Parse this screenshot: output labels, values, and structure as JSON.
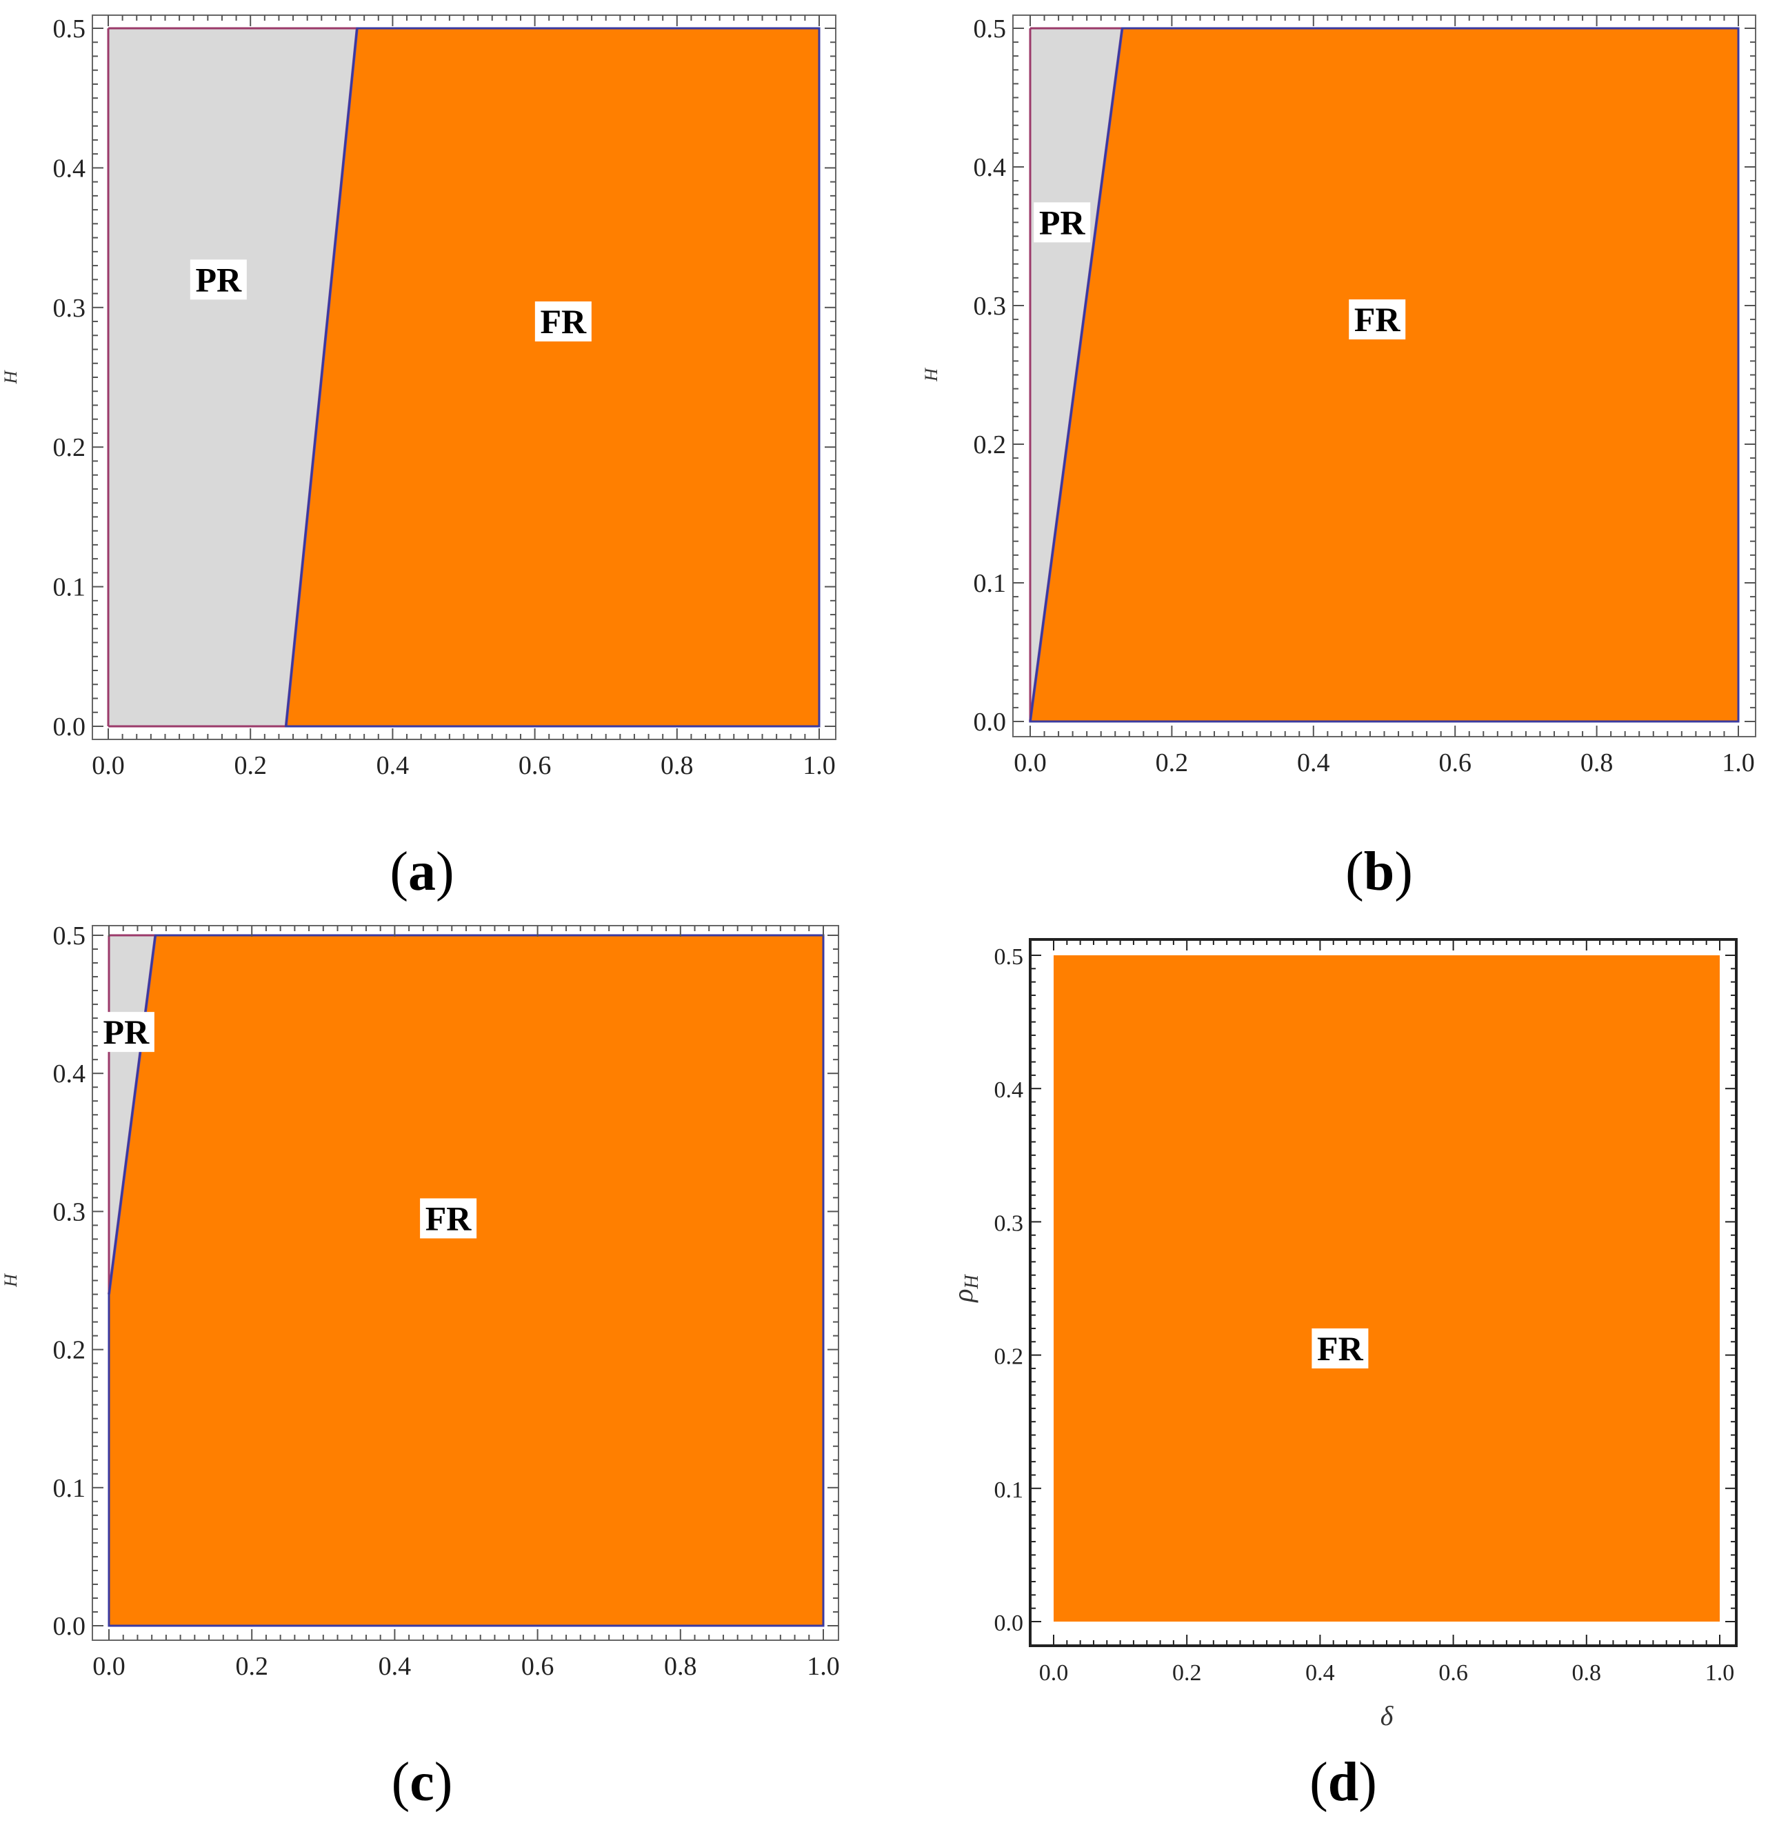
{
  "figure": {
    "colors": {
      "FR_fill": "#ff7f00",
      "PR_fill": "#d9d9d9",
      "boundary_line": "#7b4fa0",
      "outline_left": "#9b3a6a",
      "outline_right": "#3a3aa0"
    }
  },
  "chart_data": [
    {
      "panel": "a",
      "caption_letter": "a",
      "type": "area",
      "xlabel": "",
      "ylabel": "H",
      "xlim": [
        0.0,
        1.0
      ],
      "ylim": [
        0.0,
        0.5
      ],
      "xticks": [
        "0.0",
        "0.2",
        "0.4",
        "0.6",
        "0.8",
        "1.0"
      ],
      "yticks": [
        "0.0",
        "0.1",
        "0.2",
        "0.3",
        "0.4",
        "0.5"
      ],
      "regions": [
        {
          "label": "PR",
          "color": "#d9d9d9",
          "polygon": [
            [
              0,
              0
            ],
            [
              0.25,
              0
            ],
            [
              0.35,
              0.5
            ],
            [
              0,
              0.5
            ]
          ],
          "label_pos": [
            0.155,
            0.32
          ]
        },
        {
          "label": "FR",
          "color": "#ff7f00",
          "polygon": [
            [
              0.25,
              0
            ],
            [
              1.0,
              0
            ],
            [
              1.0,
              0.5
            ],
            [
              0.35,
              0.5
            ]
          ],
          "label_pos": [
            0.64,
            0.29
          ]
        }
      ],
      "boundary": [
        [
          0.25,
          0
        ],
        [
          0.35,
          0.5
        ]
      ],
      "grid": false
    },
    {
      "panel": "b",
      "caption_letter": "b",
      "type": "area",
      "xlabel": "",
      "ylabel": "H",
      "xlim": [
        0.0,
        1.0
      ],
      "ylim": [
        0.0,
        0.5
      ],
      "xticks": [
        "0.0",
        "0.2",
        "0.4",
        "0.6",
        "0.8",
        "1.0"
      ],
      "yticks": [
        "0.0",
        "0.1",
        "0.2",
        "0.3",
        "0.4",
        "0.5"
      ],
      "regions": [
        {
          "label": "PR",
          "color": "#d9d9d9",
          "polygon": [
            [
              0,
              0
            ],
            [
              0.13,
              0.5
            ],
            [
              0,
              0.5
            ]
          ],
          "label_pos": [
            0.045,
            0.36
          ]
        },
        {
          "label": "FR",
          "color": "#ff7f00",
          "polygon": [
            [
              0,
              0
            ],
            [
              1.0,
              0
            ],
            [
              1.0,
              0.5
            ],
            [
              0.13,
              0.5
            ]
          ],
          "label_pos": [
            0.49,
            0.29
          ]
        }
      ],
      "boundary": [
        [
          0,
          0
        ],
        [
          0.13,
          0.5
        ]
      ],
      "grid": false
    },
    {
      "panel": "c",
      "caption_letter": "c",
      "type": "area",
      "xlabel": "",
      "ylabel": "H",
      "xlim": [
        0.0,
        1.0
      ],
      "ylim": [
        0.0,
        0.5
      ],
      "xticks": [
        "0.0",
        "0.2",
        "0.4",
        "0.6",
        "0.8",
        "1.0"
      ],
      "yticks": [
        "0.0",
        "0.1",
        "0.2",
        "0.3",
        "0.4",
        "0.5"
      ],
      "regions": [
        {
          "label": "PR",
          "color": "#d9d9d9",
          "polygon": [
            [
              0,
              0.24
            ],
            [
              0.065,
              0.5
            ],
            [
              0,
              0.5
            ]
          ],
          "label_pos": [
            0.024,
            0.43
          ]
        },
        {
          "label": "FR",
          "color": "#ff7f00",
          "polygon": [
            [
              0,
              0
            ],
            [
              1.0,
              0
            ],
            [
              1.0,
              0.5
            ],
            [
              0.065,
              0.5
            ],
            [
              0,
              0.24
            ]
          ],
          "label_pos": [
            0.475,
            0.295
          ]
        }
      ],
      "boundary": [
        [
          0,
          0.24
        ],
        [
          0.065,
          0.5
        ]
      ],
      "grid": false
    },
    {
      "panel": "d",
      "caption_letter": "d",
      "type": "area",
      "xlabel": "δ",
      "ylabel": "ρH",
      "xlim": [
        0.0,
        1.0
      ],
      "ylim": [
        0.0,
        0.5
      ],
      "xticks": [
        "0.0",
        "0.2",
        "0.4",
        "0.6",
        "0.8",
        "1.0"
      ],
      "yticks": [
        "0.0",
        "0.1",
        "0.2",
        "0.3",
        "0.4",
        "0.5"
      ],
      "regions": [
        {
          "label": "FR",
          "color": "#ff7f00",
          "polygon": [
            [
              0,
              0
            ],
            [
              1.0,
              0
            ],
            [
              1.0,
              0.5
            ],
            [
              0,
              0.5
            ]
          ],
          "label_pos": [
            0.43,
            0.205
          ]
        }
      ],
      "boundary": [],
      "grid": false
    }
  ]
}
